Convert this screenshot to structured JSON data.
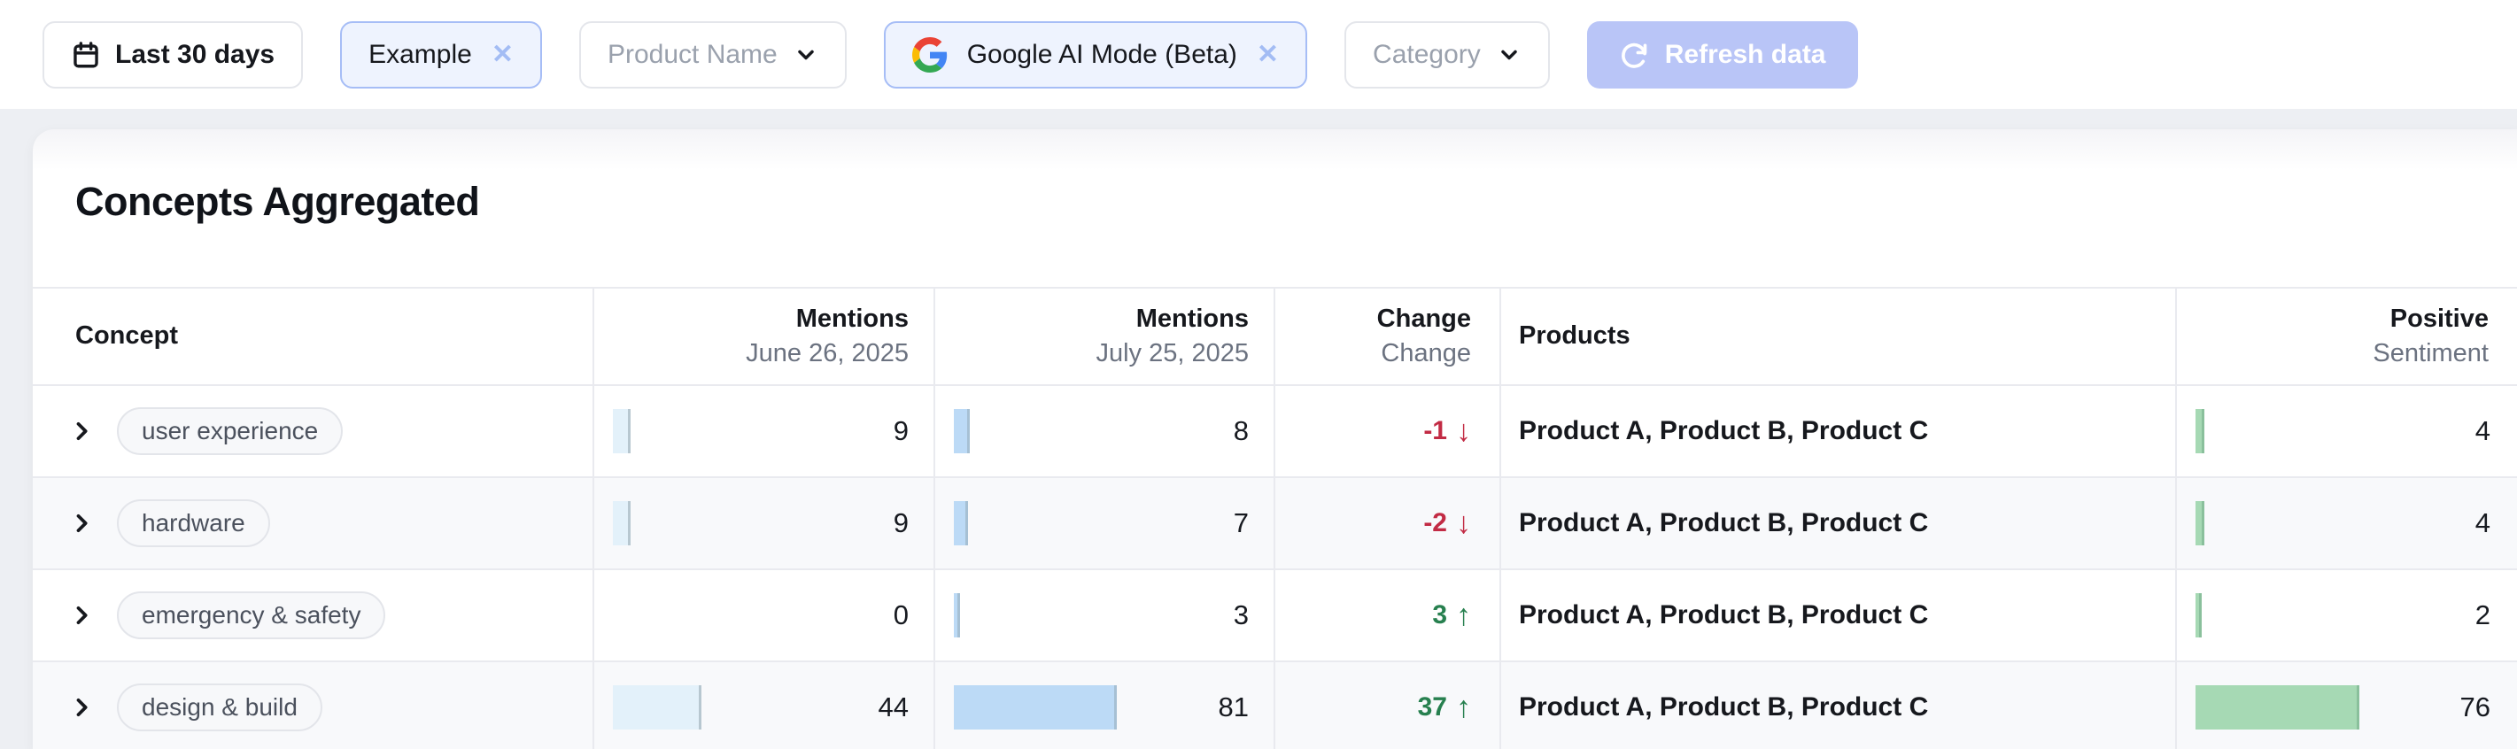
{
  "toolbar": {
    "date_filter": {
      "label": "Last 30 days"
    },
    "example_chip": {
      "label": "Example",
      "remove_glyph": "✕"
    },
    "product_select": {
      "label": "Product Name"
    },
    "source_chip": {
      "label": "Google AI Mode (Beta)",
      "remove_glyph": "✕"
    },
    "category_select": {
      "label": "Category"
    },
    "refresh_button": {
      "label": "Refresh data"
    }
  },
  "card": {
    "title": "Concepts Aggregated"
  },
  "table": {
    "headers": {
      "concept": {
        "title": "Concept"
      },
      "mentions_prev": {
        "title": "Mentions",
        "subtitle": "June 26, 2025"
      },
      "mentions_curr": {
        "title": "Mentions",
        "subtitle": "July 25, 2025"
      },
      "change": {
        "title": "Change",
        "subtitle": "Change"
      },
      "products": {
        "title": "Products"
      },
      "sentiment": {
        "title": "Positive",
        "subtitle": "Sentiment"
      }
    },
    "rows": [
      {
        "concept": "user experience",
        "mentions_prev": 9,
        "mentions_curr": 8,
        "change_value": "-1",
        "change_arrow": "↓",
        "change_direction": "down",
        "products": "Product A, Product B, Product C",
        "positive_sentiment": 4
      },
      {
        "concept": "hardware",
        "mentions_prev": 9,
        "mentions_curr": 7,
        "change_value": "-2",
        "change_arrow": "↓",
        "change_direction": "down",
        "products": "Product A, Product B, Product C",
        "positive_sentiment": 4
      },
      {
        "concept": "emergency & safety",
        "mentions_prev": 0,
        "mentions_curr": 3,
        "change_value": "3",
        "change_arrow": "↑",
        "change_direction": "up",
        "products": "Product A, Product B, Product C",
        "positive_sentiment": 2
      },
      {
        "concept": "design & build",
        "mentions_prev": 44,
        "mentions_curr": 81,
        "change_value": "37",
        "change_arrow": "↑",
        "change_direction": "up",
        "products": "Product A, Product B, Product C",
        "positive_sentiment": 76
      }
    ],
    "bar_max": {
      "mentions": 81,
      "sentiment": 76
    }
  },
  "colors": {
    "chip_blue_bg": "#eef3fe",
    "chip_blue_border": "#a6bdf6",
    "refresh_disabled_bg": "#b9c5f7",
    "bar_blue_light": "#e3f1fa",
    "bar_blue": "#bcdaf6",
    "bar_green": "#a6d9b4",
    "change_negative": "#c22b44",
    "change_positive": "#27804f"
  }
}
